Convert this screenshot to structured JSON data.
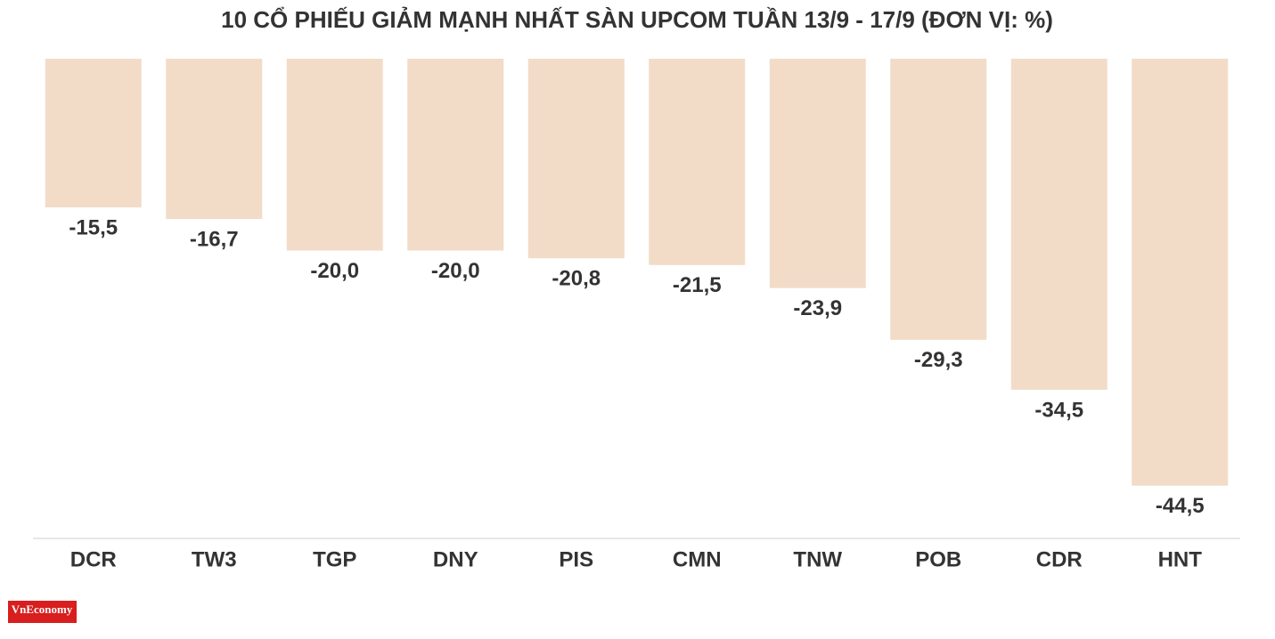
{
  "chart_data": {
    "type": "bar",
    "title": "10 CỔ PHIẾU GIẢM MẠNH NHẤT SÀN UPCOM TUẦN 13/9 - 17/9 (ĐƠN VỊ: %)",
    "categories": [
      "DCR",
      "TW3",
      "TGP",
      "DNY",
      "PIS",
      "CMN",
      "TNW",
      "POB",
      "CDR",
      "HNT"
    ],
    "values": [
      -15.5,
      -16.7,
      -20.0,
      -20.0,
      -20.8,
      -21.5,
      -23.9,
      -29.3,
      -34.5,
      -44.5
    ],
    "value_labels": [
      "-15,5",
      "-16,7",
      "-20,0",
      "-20,0",
      "-20,8",
      "-21,5",
      "-23,9",
      "-29,3",
      "-34,5",
      "-44,5"
    ],
    "color": "#f2dcc8",
    "ylim": [
      -50,
      0
    ]
  },
  "logo": "VnEconomy"
}
